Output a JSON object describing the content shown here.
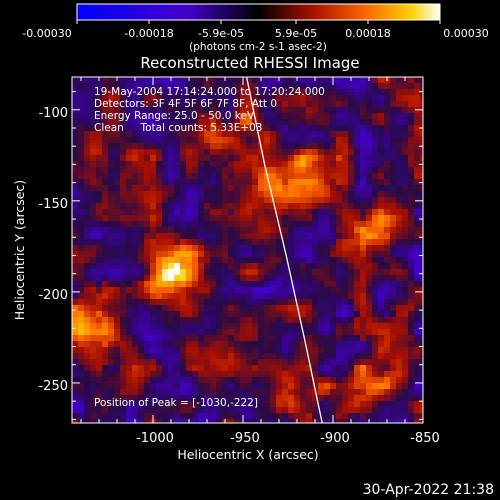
{
  "colorbar": {
    "ticks": [
      "-0.00030",
      "-0.00018",
      "-5.9e-05",
      "5.9e-05",
      "0.00018",
      "0.00030"
    ],
    "units": "(photons cm-2 s-1 asec-2)",
    "range": [
      -0.0003,
      0.0003
    ]
  },
  "title": "Reconstructed RHESSI Image",
  "annotations": [
    "19-May-2004 17:14:24.000 to 17:20:24.000",
    "Detectors: 3F 4F 5F 6F 7F 8F, Att 0",
    "Energy Range: 25.0 - 50.0 keV",
    "Clean     Total counts: 5.33E+03"
  ],
  "peak_label": "Position of Peak = [-1030,-222]",
  "footer_timestamp": "30-Apr-2022 21:38",
  "chart_data": {
    "type": "heatmap",
    "title": "Reconstructed RHESSI Image",
    "xlabel": "Heliocentric X (arcsec)",
    "ylabel": "Heliocentric Y (arcsec)",
    "xlim": [
      -1045,
      -850
    ],
    "ylim": [
      -272,
      -82
    ],
    "xticks": [
      -1000,
      -950,
      -900,
      -850
    ],
    "xtick_labels": [
      "-1000",
      "-950",
      "-900",
      "-850"
    ],
    "yticks": [
      -100,
      -150,
      -200,
      -250
    ],
    "ytick_labels": [
      "-100",
      "-150",
      "-200",
      "-250"
    ],
    "peak_position": [
      -1030,
      -222
    ],
    "limb_curve": {
      "x": [
        -948,
        -938,
        -926,
        -916,
        -906
      ],
      "y": [
        -82,
        -130,
        -180,
        -225,
        -272
      ]
    },
    "bright_sources": [
      {
        "x": -988,
        "y": -192,
        "value": 0.0003
      },
      {
        "x": -1032,
        "y": -225,
        "value": 0.00026
      },
      {
        "x": -955,
        "y": -118,
        "value": 0.00015
      },
      {
        "x": -920,
        "y": -138,
        "value": 0.0002
      },
      {
        "x": -878,
        "y": -165,
        "value": 0.00014
      },
      {
        "x": -962,
        "y": -232,
        "value": 0.00012
      },
      {
        "x": -875,
        "y": -250,
        "value": 0.0001
      },
      {
        "x": -920,
        "y": -252,
        "value": 9e-05
      }
    ]
  }
}
